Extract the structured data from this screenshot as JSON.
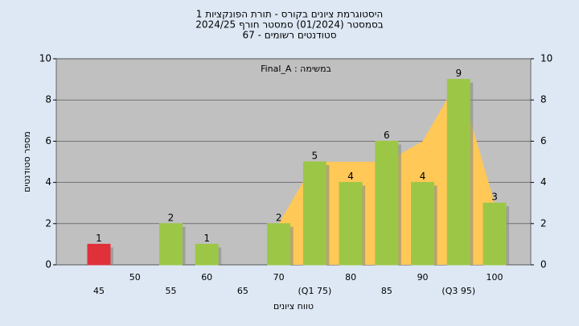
{
  "chart_data": {
    "type": "bar",
    "title": [
      "היסטוגרמת ציונים בקורס - תורת הפונקציות 1",
      "בסמסטר  (01/2024)  סמסטר חורף 2024/25",
      "סטודנטים רשומים - 67"
    ],
    "annotation": "במשימה : Final_A",
    "x_label": "טווח ציונים",
    "y_label": "מספר סטודנטים",
    "categories": [
      "45",
      "50",
      "55",
      "60",
      "65",
      "70",
      "(Q1 75)",
      "80",
      "85",
      "90",
      "(Q3 95)",
      "100"
    ],
    "values": [
      1,
      0,
      2,
      1,
      0,
      2,
      5,
      4,
      6,
      4,
      9,
      3
    ],
    "colors": [
      "#e0303a",
      "#9cc746",
      "#9cc746",
      "#9cc746",
      "#9cc746",
      "#9cc746",
      "#9cc746",
      "#9cc746",
      "#9cc746",
      "#9cc746",
      "#9cc746",
      "#9cc746"
    ],
    "area": {
      "color": "#ffc857",
      "values": [
        null,
        null,
        null,
        null,
        null,
        2,
        5,
        5,
        5,
        6,
        9,
        3
      ]
    },
    "ylim": [
      0,
      10
    ],
    "yticks": [
      0,
      2,
      4,
      6,
      8,
      10
    ],
    "y2lim": [
      0,
      10
    ],
    "y2ticks": [
      0,
      2,
      4,
      6,
      8,
      10
    ],
    "grid": true
  }
}
